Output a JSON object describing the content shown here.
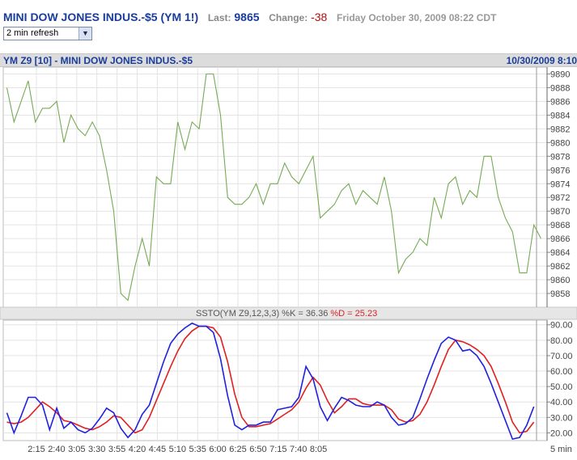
{
  "header": {
    "symbol": "MINI DOW JONES INDUS.-$5 (YM 1!)",
    "last_label": "Last:",
    "last_value": "9865",
    "change_label": "Change:",
    "change_value": "-38",
    "datetime": "Friday October 30, 2009 08:22 CDT"
  },
  "refresh": {
    "selected": "2 min refresh"
  },
  "chart_title": {
    "left": "YM Z9 [10] - MINI DOW JONES INDUS.-$5",
    "right": "10/30/2009 8:10"
  },
  "chart_data": [
    {
      "type": "line",
      "name": "price",
      "ylim": [
        9856,
        9891
      ],
      "yticks": [
        "9890",
        "9888",
        "9886",
        "9884",
        "9882",
        "9880",
        "9878",
        "9876",
        "9874",
        "9872",
        "9870",
        "9868",
        "9866",
        "9864",
        "9862",
        "9860",
        "9858"
      ],
      "line_color": "#77aa55",
      "values": [
        9888,
        9883,
        9886,
        9889,
        9883,
        9885,
        9885,
        9886,
        9880,
        9884,
        9882,
        9881,
        9883,
        9881,
        9876,
        9870,
        9858,
        9857,
        9862,
        9866,
        9862,
        9875,
        9874,
        9874,
        9883,
        9879,
        9883,
        9882,
        9890,
        9890,
        9884,
        9872,
        9871,
        9871,
        9872,
        9874,
        9871,
        9874,
        9874,
        9877,
        9875,
        9874,
        9876,
        9878,
        9869,
        9870,
        9871,
        9873,
        9874,
        9871,
        9873,
        9872,
        9871,
        9875,
        9870,
        9861,
        9863,
        9864,
        9866,
        9865,
        9872,
        9869,
        9874,
        9875,
        9871,
        9873,
        9872,
        9878,
        9878,
        9872,
        9869,
        9867,
        9861,
        9861,
        9868,
        9866
      ]
    },
    {
      "type": "line",
      "title_left": "SSTO(YM Z9,12,3,3) %K = 36.36 ",
      "title_right": "%D = 25.23",
      "ylim": [
        15,
        93
      ],
      "yticks": [
        "90.00",
        "80.00",
        "70.00",
        "60.00",
        "50.00",
        "40.00",
        "30.00",
        "20.00"
      ],
      "x_labels": [
        "2:15",
        "2:40",
        "3:05",
        "3:30",
        "3:55",
        "4:20",
        "4:45",
        "5:10",
        "5:35",
        "6:00",
        "6:25",
        "6:50",
        "7:15",
        "7:40",
        "8:05"
      ],
      "x_unit": "5 min",
      "series": [
        {
          "color": "#2020e0",
          "values": [
            33,
            20,
            31,
            43,
            43,
            38,
            22,
            36,
            23,
            27,
            22,
            20,
            23,
            29,
            36,
            33,
            23,
            17,
            22,
            32,
            38,
            52,
            66,
            78,
            84,
            88,
            91,
            89,
            89,
            85,
            68,
            44,
            25,
            22,
            25,
            25,
            27,
            27,
            35,
            36,
            37,
            43,
            63,
            55,
            37,
            28,
            36,
            43,
            41,
            38,
            37,
            37,
            40,
            38,
            30,
            25,
            26,
            30,
            42,
            55,
            67,
            78,
            82,
            80,
            73,
            74,
            70,
            63,
            52,
            40,
            28,
            16,
            17,
            25,
            37
          ]
        },
        {
          "color": "#e02020",
          "values": [
            27,
            26,
            27,
            30,
            35,
            40,
            37,
            33,
            28,
            27,
            25,
            23,
            22,
            24,
            27,
            31,
            30,
            25,
            20,
            22,
            30,
            41,
            52,
            63,
            73,
            81,
            86,
            89,
            89,
            88,
            82,
            66,
            45,
            30,
            24,
            24,
            25,
            26,
            29,
            32,
            35,
            40,
            49,
            56,
            51,
            41,
            33,
            37,
            42,
            42,
            39,
            38,
            38,
            38,
            35,
            29,
            27,
            28,
            32,
            40,
            51,
            63,
            74,
            80,
            79,
            77,
            74,
            70,
            63,
            52,
            40,
            27,
            20,
            21,
            27
          ]
        }
      ]
    }
  ]
}
